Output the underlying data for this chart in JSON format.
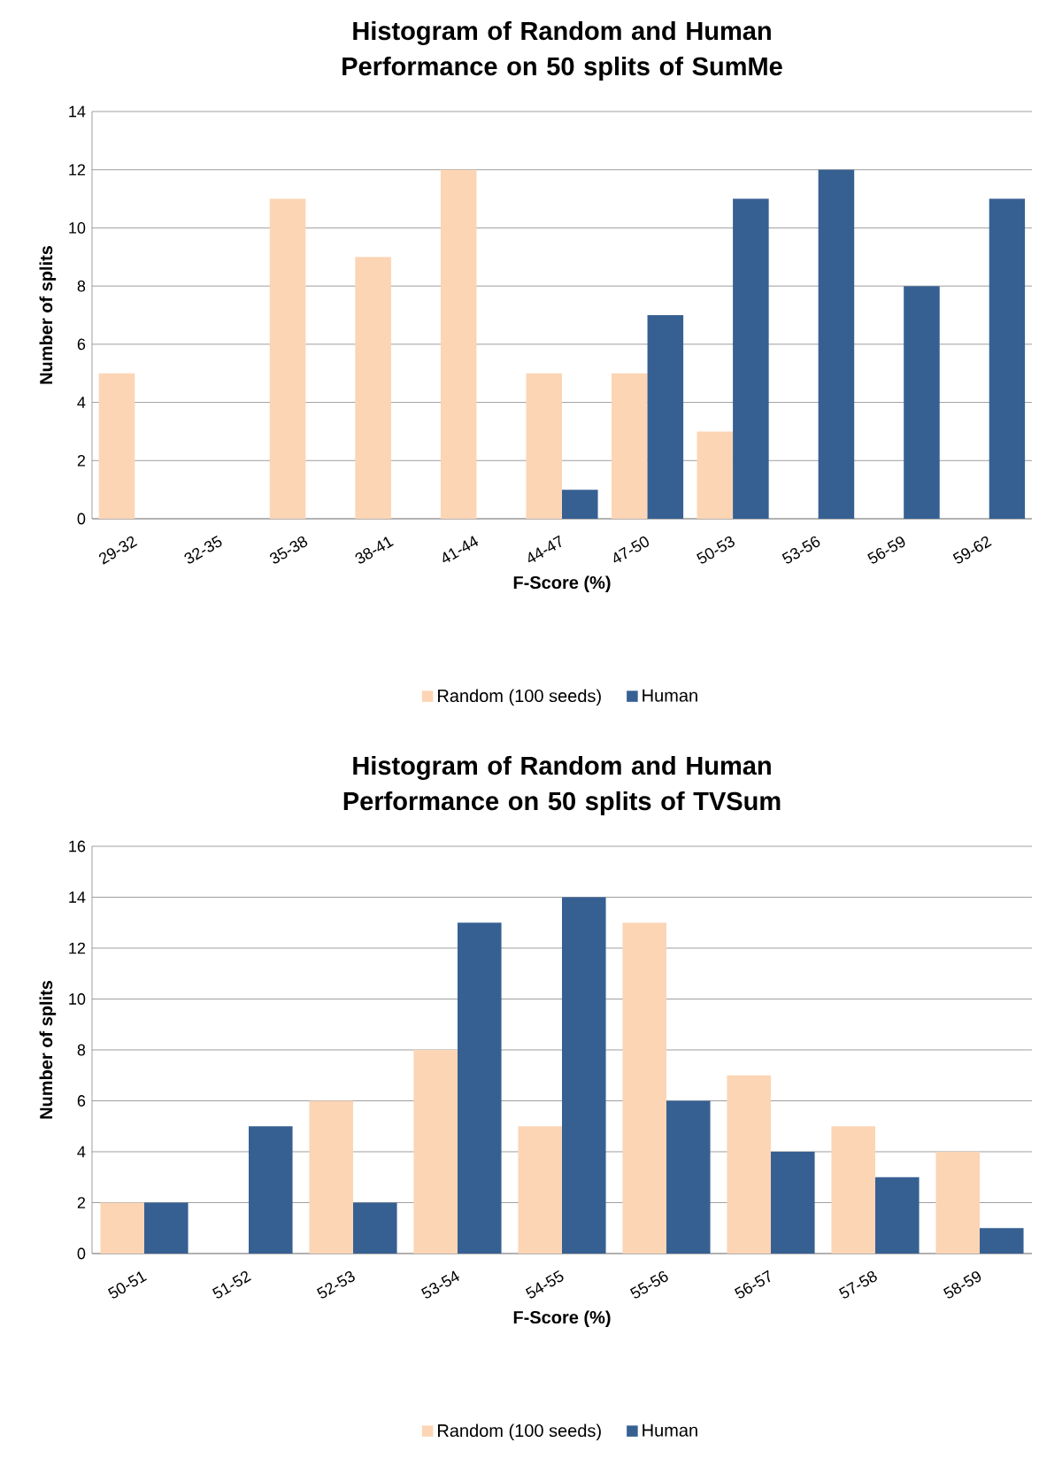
{
  "chart_data": [
    {
      "type": "bar",
      "title": "Histogram of Random and Human Performance on 50 splits of SumMe",
      "xlabel": "F-Score (%)",
      "ylabel": "Number of splits",
      "categories": [
        "29-32",
        "32-35",
        "35-38",
        "38-41",
        "41-44",
        "44-47",
        "47-50",
        "50-53",
        "53-56",
        "56-59",
        "59-62"
      ],
      "series": [
        {
          "name": "Random (100 seeds)",
          "color": "#fcd5b5",
          "values": [
            5,
            0,
            11,
            9,
            12,
            5,
            5,
            3,
            0,
            0,
            0
          ]
        },
        {
          "name": "Human",
          "color": "#376092",
          "values": [
            0,
            0,
            0,
            0,
            0,
            1,
            7,
            11,
            12,
            8,
            11
          ]
        }
      ],
      "ylim": [
        0,
        14
      ],
      "yticks": [
        0,
        2,
        4,
        6,
        8,
        10,
        12,
        14
      ],
      "grid": "y",
      "legend": "bottom"
    },
    {
      "type": "bar",
      "title": "Histogram of Random and Human Performance on 50 splits of TVSum",
      "xlabel": "F-Score (%)",
      "ylabel": "Number of splits",
      "categories": [
        "50-51",
        "51-52",
        "52-53",
        "53-54",
        "54-55",
        "55-56",
        "56-57",
        "57-58",
        "58-59"
      ],
      "series": [
        {
          "name": "Random (100 seeds)",
          "color": "#fcd5b5",
          "values": [
            2,
            0,
            6,
            8,
            5,
            13,
            7,
            5,
            4
          ]
        },
        {
          "name": "Human",
          "color": "#376092",
          "values": [
            2,
            5,
            2,
            13,
            14,
            6,
            4,
            3,
            1
          ]
        }
      ],
      "ylim": [
        0,
        16
      ],
      "yticks": [
        0,
        2,
        4,
        6,
        8,
        10,
        12,
        14,
        16
      ],
      "grid": "y",
      "legend": "bottom"
    }
  ]
}
